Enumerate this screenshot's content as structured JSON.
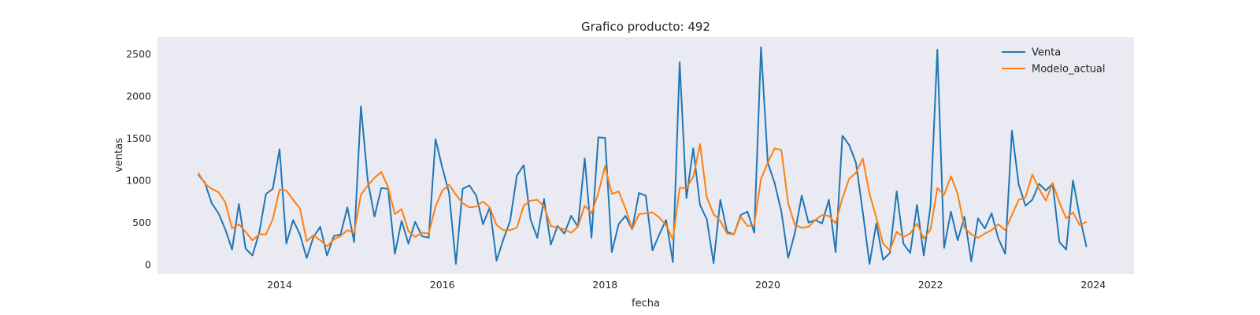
{
  "chart_data": {
    "type": "line",
    "title": "Grafico producto: 492",
    "xlabel": "fecha",
    "ylabel": "ventas",
    "xlim": [
      "2012-07-01",
      "2024-07-01"
    ],
    "ylim": [
      -110,
      2700
    ],
    "x_ticks": [
      "2014",
      "2016",
      "2018",
      "2020",
      "2022",
      "2024"
    ],
    "y_ticks": [
      0,
      500,
      1000,
      1500,
      2000,
      2500
    ],
    "grid": false,
    "background": "#eaeaf2",
    "legend": {
      "position": "top-right"
    },
    "x_start": "2013-01",
    "x_end": "2023-12",
    "x_frequency": "monthly",
    "series": [
      {
        "name": "Venta",
        "color": "#1f77b4",
        "values": [
          1070,
          970,
          730,
          610,
          420,
          180,
          720,
          190,
          110,
          380,
          840,
          900,
          1370,
          250,
          530,
          360,
          80,
          330,
          450,
          110,
          340,
          360,
          680,
          270,
          1880,
          1000,
          570,
          910,
          900,
          130,
          520,
          250,
          510,
          340,
          320,
          1490,
          1150,
          850,
          10,
          900,
          940,
          820,
          480,
          680,
          50,
          300,
          520,
          1060,
          1180,
          540,
          320,
          780,
          240,
          460,
          370,
          580,
          450,
          1260,
          320,
          1510,
          1505,
          150,
          480,
          580,
          420,
          850,
          820,
          170,
          360,
          530,
          30,
          2400,
          790,
          1380,
          710,
          540,
          20,
          770,
          390,
          360,
          590,
          630,
          380,
          2580,
          1210,
          970,
          630,
          80,
          380,
          820,
          500,
          530,
          490,
          770,
          150,
          1530,
          1420,
          1210,
          630,
          10,
          490,
          60,
          140,
          870,
          250,
          140,
          710,
          110,
          700,
          2550,
          200,
          630,
          290,
          570,
          40,
          550,
          430,
          610,
          310,
          130,
          1590,
          950,
          700,
          770,
          960,
          880,
          960,
          270,
          180,
          1000,
          570,
          210
        ]
      },
      {
        "name": "Modelo_actual",
        "color": "#ff7f0e",
        "values": [
          1090,
          960,
          900,
          860,
          740,
          430,
          480,
          390,
          290,
          360,
          360,
          540,
          890,
          880,
          770,
          670,
          280,
          350,
          290,
          220,
          300,
          340,
          410,
          380,
          830,
          940,
          1030,
          1100,
          920,
          600,
          660,
          400,
          330,
          380,
          370,
          690,
          880,
          950,
          830,
          730,
          680,
          690,
          750,
          680,
          470,
          410,
          410,
          440,
          700,
          760,
          770,
          690,
          460,
          440,
          420,
          380,
          450,
          700,
          610,
          850,
          1170,
          840,
          870,
          670,
          420,
          600,
          610,
          620,
          560,
          470,
          300,
          910,
          910,
          1040,
          1430,
          800,
          600,
          520,
          370,
          360,
          570,
          460,
          470,
          1020,
          1210,
          1380,
          1360,
          730,
          470,
          440,
          450,
          530,
          590,
          580,
          490,
          790,
          1020,
          1090,
          1260,
          840,
          560,
          250,
          170,
          390,
          330,
          370,
          490,
          310,
          420,
          910,
          830,
          1050,
          840,
          440,
          360,
          320,
          370,
          410,
          480,
          410,
          590,
          770,
          800,
          1070,
          900,
          760,
          970,
          740,
          550,
          620,
          470,
          510
        ]
      }
    ]
  }
}
